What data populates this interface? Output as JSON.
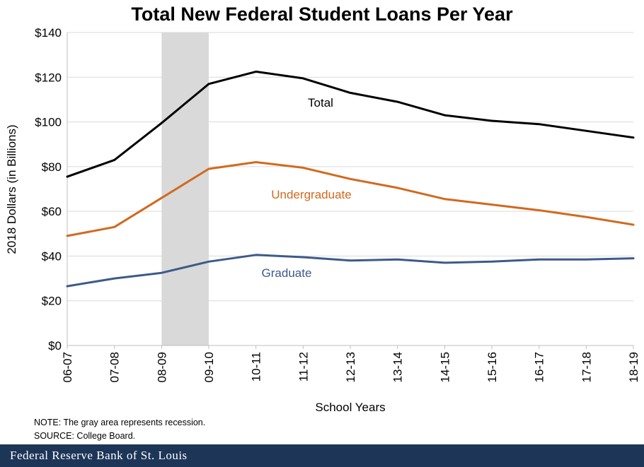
{
  "chart_data": {
    "type": "line",
    "title": "Total New Federal Student Loans Per Year",
    "xlabel": "School Years",
    "ylabel": "2018 Dollars (in Billions)",
    "categories": [
      "06-07",
      "07-08",
      "08-09",
      "09-10",
      "10-11",
      "11-12",
      "12-13",
      "13-14",
      "14-15",
      "15-16",
      "16-17",
      "17-18",
      "18-19"
    ],
    "y_ticks": [
      "$0",
      "$20",
      "$40",
      "$60",
      "$80",
      "$100",
      "$120",
      "$140"
    ],
    "ylim": [
      0,
      140
    ],
    "grid": true,
    "recession_shading": {
      "from": "08-09",
      "to": "09-10",
      "color": "#d9d9d9"
    },
    "series": [
      {
        "name": "Total",
        "color": "#000000",
        "values": [
          75.5,
          83,
          99.5,
          117,
          122.5,
          119.5,
          113,
          109,
          103,
          100.5,
          99,
          96,
          93
        ]
      },
      {
        "name": "Undergraduate",
        "color": "#d2691e",
        "values": [
          49,
          53,
          66,
          79,
          82,
          79.5,
          74.5,
          70.5,
          65.5,
          63,
          60.5,
          57.5,
          54
        ]
      },
      {
        "name": "Graduate",
        "color": "#3d5a8a",
        "values": [
          26.5,
          30,
          32.5,
          37.5,
          40.5,
          39.5,
          38,
          38.5,
          37,
          37.5,
          38.5,
          38.5,
          39
        ]
      }
    ]
  },
  "notes": {
    "note": "NOTE: The gray area represents recession.",
    "source": "SOURCE: College Board."
  },
  "footer": {
    "text": "Federal Reserve Bank of St. Louis"
  }
}
